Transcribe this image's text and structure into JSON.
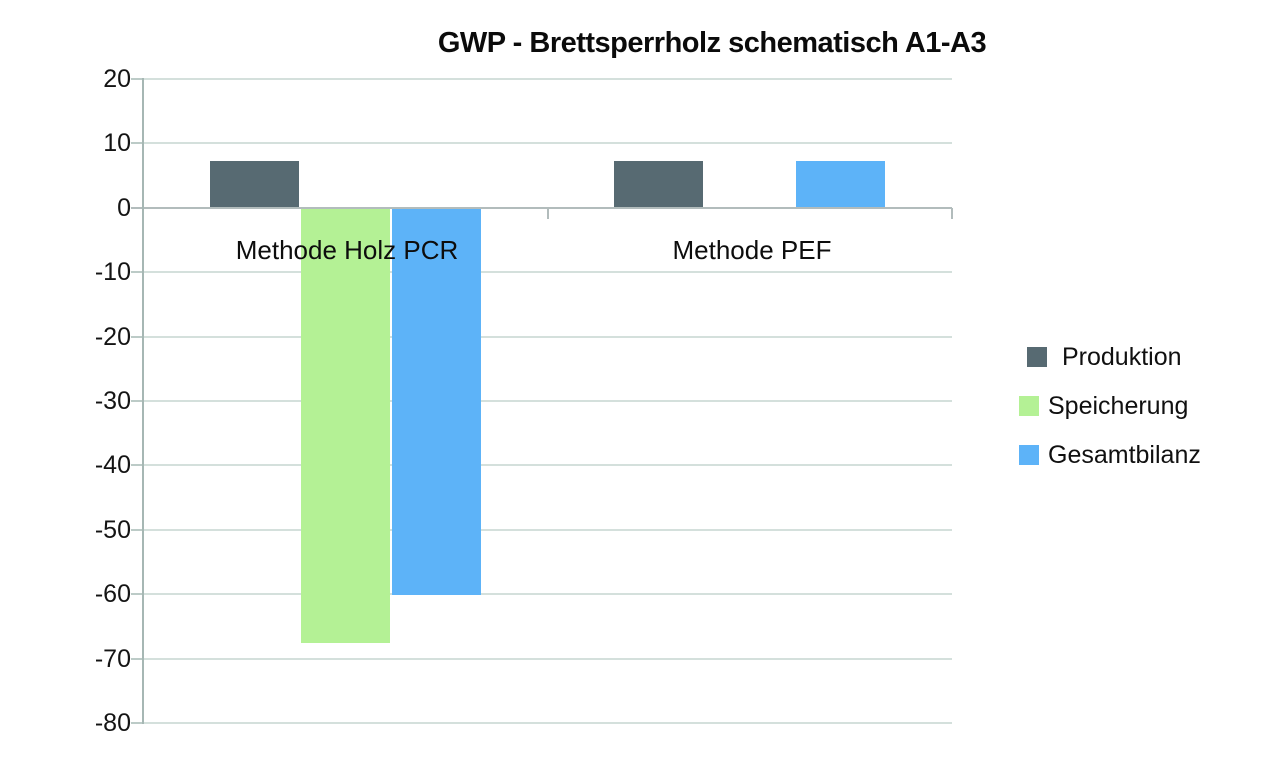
{
  "title": "GWP - Brettsperrholz schematisch A1-A3",
  "chart_data": {
    "type": "bar",
    "title": "GWP - Brettsperrholz schematisch A1-A3",
    "categories": [
      "Methode Holz PCR",
      "Methode PEF"
    ],
    "series": [
      {
        "name": "Produktion",
        "color": "#576a72",
        "values": [
          7.3,
          7.3
        ]
      },
      {
        "name": "Speicherung",
        "color": "#b4f195",
        "values": [
          -67.5,
          0
        ]
      },
      {
        "name": "Gesamtbilanz",
        "color": "#5db3f8",
        "values": [
          -60.2,
          7.3
        ]
      }
    ],
    "xlabel": "",
    "ylabel": "",
    "ylim": [
      -80,
      20
    ],
    "ytick_step": 10,
    "yticks": [
      20,
      10,
      0,
      -10,
      -20,
      -30,
      -40,
      -50,
      -60,
      -70,
      -80
    ],
    "grid": "horizontal",
    "legend_position": "right"
  },
  "colors": {
    "background": "#ffffff",
    "gridline": "#d4e0dc",
    "zero_line": "#b2bcbc",
    "axis_line": "#a6b7b4",
    "tick": "#bccbc7",
    "title_text": "#0b0b0b",
    "label_text": "#101010"
  }
}
